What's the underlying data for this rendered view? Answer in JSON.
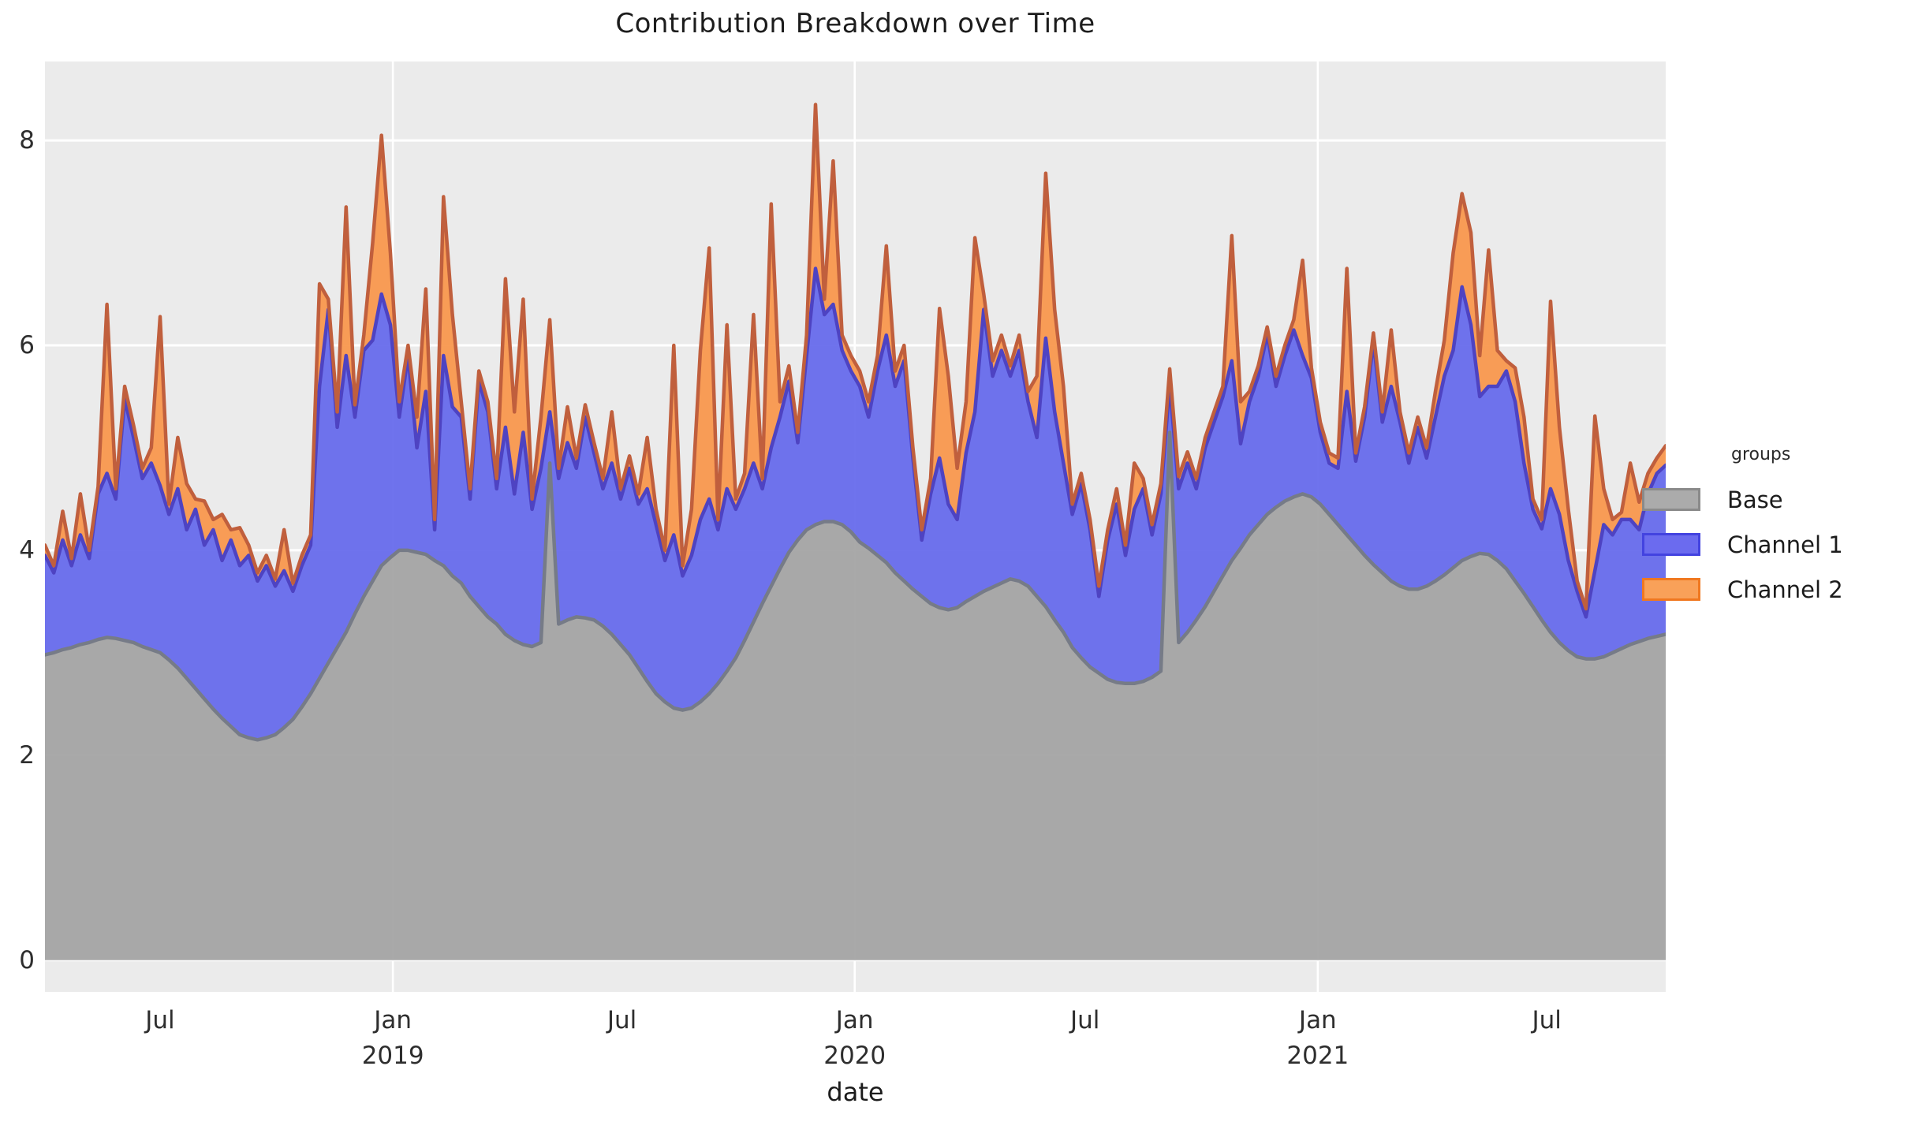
{
  "title": "Contribution Breakdown over Time",
  "x_axis": {
    "label": "date"
  },
  "y_axis": {
    "ticks": [
      "0",
      "2",
      "4",
      "6",
      "8"
    ],
    "tick_values": [
      0,
      2,
      4,
      6,
      8
    ]
  },
  "legend": {
    "title": "groups",
    "position": "right",
    "items": [
      {
        "label": "Base",
        "fill": "#ababab",
        "stroke": "#8a8a8a"
      },
      {
        "label": "Channel 1",
        "fill": "#6b6bef",
        "stroke": "#4343e0"
      },
      {
        "label": "Channel 2",
        "fill": "#f9a159",
        "stroke": "#f07820"
      }
    ]
  },
  "colors": {
    "panel_background": "#ebebeb",
    "gridline": "#ffffff",
    "base_fill": "#a3a3a3",
    "base_stroke": "#767b87",
    "channel1_fill": "#6468ec",
    "channel1_stroke": "#4e43c2",
    "channel2_fill": "#f9964a",
    "channel2_stroke": "#c05f3d",
    "text": "#2e2e2e"
  },
  "chart_data": {
    "type": "area",
    "stacked": true,
    "title": "Contribution Breakdown over Time",
    "xlabel": "date",
    "ylabel": "",
    "x_start": "2018-04-01",
    "x_step_days": 7,
    "total_days": 1281,
    "ylim": [
      -0.31,
      8.77
    ],
    "grid": true,
    "legend_position": "right",
    "x_ticks": [
      {
        "label": "Jul",
        "sublabel": "",
        "day_offset": 91
      },
      {
        "label": "Jan",
        "sublabel": "2019",
        "day_offset": 275
      },
      {
        "label": "Jul",
        "sublabel": "",
        "day_offset": 456
      },
      {
        "label": "Jan",
        "sublabel": "2020",
        "day_offset": 640
      },
      {
        "label": "Jul",
        "sublabel": "",
        "day_offset": 822
      },
      {
        "label": "Jan",
        "sublabel": "2021",
        "day_offset": 1006
      },
      {
        "label": "Jul",
        "sublabel": "",
        "day_offset": 1187
      }
    ],
    "vertical_grid_day_offsets": [
      275,
      640,
      1006
    ],
    "series": [
      {
        "name": "Base",
        "values": [
          2.98,
          3.0,
          3.03,
          3.05,
          3.08,
          3.1,
          3.13,
          3.15,
          3.14,
          3.12,
          3.1,
          3.06,
          3.03,
          3.0,
          2.93,
          2.85,
          2.75,
          2.65,
          2.55,
          2.45,
          2.36,
          2.28,
          2.2,
          2.17,
          2.15,
          2.17,
          2.2,
          2.27,
          2.35,
          2.47,
          2.6,
          2.75,
          2.9,
          3.05,
          3.2,
          3.38,
          3.55,
          3.7,
          3.85,
          3.93,
          4.0,
          4.0,
          3.98,
          3.96,
          3.9,
          3.85,
          3.75,
          3.68,
          3.55,
          3.45,
          3.35,
          3.28,
          3.18,
          3.12,
          3.08,
          3.06,
          3.1,
          4.85,
          3.28,
          3.32,
          3.35,
          3.34,
          3.32,
          3.26,
          3.18,
          3.08,
          2.98,
          2.85,
          2.72,
          2.6,
          2.52,
          2.46,
          2.44,
          2.46,
          2.52,
          2.6,
          2.7,
          2.82,
          2.95,
          3.12,
          3.3,
          3.48,
          3.65,
          3.82,
          3.98,
          4.1,
          4.2,
          4.25,
          4.28,
          4.28,
          4.25,
          4.18,
          4.08,
          4.02,
          3.95,
          3.88,
          3.78,
          3.7,
          3.62,
          3.55,
          3.48,
          3.44,
          3.42,
          3.44,
          3.5,
          3.55,
          3.6,
          3.64,
          3.68,
          3.72,
          3.7,
          3.65,
          3.55,
          3.45,
          3.32,
          3.2,
          3.05,
          2.95,
          2.86,
          2.8,
          2.74,
          2.71,
          2.7,
          2.7,
          2.72,
          2.76,
          2.82,
          5.15,
          3.1,
          3.2,
          3.32,
          3.45,
          3.6,
          3.75,
          3.9,
          4.02,
          4.15,
          4.25,
          4.35,
          4.42,
          4.48,
          4.52,
          4.55,
          4.52,
          4.45,
          4.35,
          4.25,
          4.15,
          4.05,
          3.95,
          3.86,
          3.78,
          3.7,
          3.65,
          3.62,
          3.62,
          3.65,
          3.7,
          3.76,
          3.83,
          3.9,
          3.94,
          3.97,
          3.96,
          3.9,
          3.82,
          3.7,
          3.58,
          3.45,
          3.32,
          3.2,
          3.1,
          3.02,
          2.96,
          2.94,
          2.94,
          2.96,
          3.0,
          3.04,
          3.08,
          3.11,
          3.14,
          3.16,
          3.18
        ]
      },
      {
        "name": "Channel 1",
        "values": [
          0.97,
          0.78,
          1.07,
          0.8,
          1.07,
          0.82,
          1.42,
          1.6,
          1.36,
          2.36,
          2.0,
          1.64,
          1.82,
          1.63,
          1.42,
          1.75,
          1.45,
          1.75,
          1.5,
          1.75,
          1.54,
          1.82,
          1.65,
          1.78,
          1.55,
          1.68,
          1.45,
          1.53,
          1.25,
          1.38,
          1.45,
          2.85,
          3.45,
          2.15,
          2.7,
          1.92,
          2.4,
          2.35,
          2.65,
          2.27,
          1.3,
          1.9,
          1.02,
          1.59,
          0.3,
          2.05,
          1.65,
          1.62,
          0.95,
          2.2,
          2.0,
          1.32,
          2.02,
          1.43,
          2.07,
          1.34,
          1.7,
          0.5,
          1.42,
          1.73,
          1.45,
          1.96,
          1.63,
          1.34,
          1.67,
          1.42,
          1.82,
          1.6,
          1.88,
          1.65,
          1.38,
          1.69,
          1.31,
          1.49,
          1.78,
          1.9,
          1.5,
          1.78,
          1.45,
          1.48,
          1.55,
          1.12,
          1.35,
          1.48,
          1.67,
          0.95,
          1.7,
          2.5,
          2.02,
          2.12,
          1.7,
          1.57,
          1.52,
          1.28,
          1.8,
          2.22,
          1.82,
          2.15,
          1.28,
          0.55,
          1.07,
          1.46,
          1.03,
          0.86,
          1.45,
          1.8,
          2.75,
          2.06,
          2.27,
          1.98,
          2.25,
          1.8,
          1.55,
          2.62,
          2.03,
          1.65,
          1.3,
          1.7,
          1.34,
          0.75,
          1.36,
          1.74,
          1.25,
          1.7,
          1.88,
          1.39,
          1.73,
          0.47,
          1.5,
          1.65,
          1.28,
          1.55,
          1.65,
          1.75,
          1.95,
          1.02,
          1.3,
          1.45,
          1.76,
          1.18,
          1.42,
          1.63,
          1.35,
          1.16,
          0.7,
          0.5,
          0.55,
          1.4,
          0.82,
          1.35,
          2.18,
          1.47,
          1.9,
          1.6,
          1.23,
          1.58,
          1.25,
          1.6,
          1.94,
          2.12,
          2.67,
          2.26,
          1.53,
          1.64,
          1.7,
          1.93,
          1.75,
          1.27,
          0.95,
          0.89,
          1.4,
          1.25,
          0.88,
          0.64,
          0.41,
          0.86,
          1.29,
          1.15,
          1.26,
          1.22,
          1.09,
          1.41,
          1.59,
          1.65
        ]
      },
      {
        "name": "Channel 2",
        "values": [
          0.1,
          0.07,
          0.28,
          0.07,
          0.4,
          0.08,
          0.07,
          1.65,
          0.1,
          0.12,
          0.12,
          0.1,
          0.15,
          1.65,
          0.1,
          0.5,
          0.45,
          0.1,
          0.43,
          0.1,
          0.45,
          0.1,
          0.37,
          0.1,
          0.08,
          0.1,
          0.07,
          0.4,
          0.08,
          0.1,
          0.1,
          1.0,
          0.1,
          0.15,
          1.45,
          0.12,
          0.15,
          0.95,
          1.55,
          0.7,
          0.15,
          0.1,
          0.3,
          1.0,
          0.1,
          1.55,
          0.9,
          0.15,
          0.1,
          0.1,
          0.1,
          0.1,
          1.45,
          0.8,
          1.3,
          0.1,
          0.5,
          0.9,
          0.1,
          0.35,
          0.1,
          0.12,
          0.1,
          0.1,
          0.5,
          0.1,
          0.12,
          0.1,
          0.5,
          0.15,
          0.1,
          1.85,
          0.1,
          0.45,
          1.65,
          2.45,
          0.1,
          1.6,
          0.1,
          0.15,
          1.45,
          0.1,
          2.38,
          0.15,
          0.15,
          0.1,
          0.2,
          1.6,
          0.15,
          1.4,
          0.15,
          0.15,
          0.15,
          0.15,
          0.15,
          0.87,
          0.15,
          0.15,
          0.1,
          0.1,
          0.15,
          1.46,
          1.25,
          0.5,
          0.5,
          1.7,
          0.15,
          0.15,
          0.15,
          0.1,
          0.15,
          0.1,
          0.6,
          1.61,
          1.0,
          0.75,
          0.1,
          0.1,
          0.1,
          0.1,
          0.1,
          0.15,
          0.1,
          0.45,
          0.1,
          0.1,
          0.1,
          0.15,
          0.12,
          0.11,
          0.1,
          0.1,
          0.1,
          0.1,
          1.22,
          0.41,
          0.1,
          0.1,
          0.07,
          0.1,
          0.1,
          0.1,
          0.93,
          0.1,
          0.1,
          0.1,
          0.1,
          1.2,
          0.08,
          0.1,
          0.08,
          0.1,
          0.55,
          0.1,
          0.1,
          0.1,
          0.1,
          0.25,
          0.35,
          0.95,
          0.91,
          0.9,
          0.4,
          1.33,
          0.35,
          0.1,
          0.33,
          0.45,
          0.1,
          0.09,
          1.83,
          0.85,
          0.5,
          0.1,
          0.08,
          1.51,
          0.35,
          0.15,
          0.07,
          0.55,
          0.27,
          0.2,
          0.15,
          0.19
        ]
      }
    ]
  }
}
